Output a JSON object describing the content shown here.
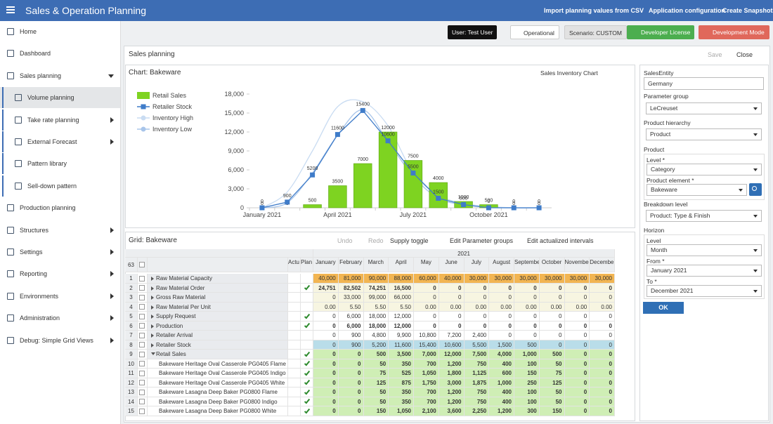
{
  "header": {
    "title": "Sales & Operation Planning",
    "actions": [
      "Import planning values from CSV",
      "Application configuration",
      "Create Snapshot"
    ]
  },
  "sidebar": {
    "items": [
      "Home",
      "Dashboard",
      "Sales planning",
      "Volume planning",
      "Take rate planning",
      "External Forecast",
      "Pattern library",
      "Sell-down pattern",
      "Production planning",
      "Structures",
      "Settings",
      "Reporting",
      "Environments",
      "Administration",
      "Debug: Simple Grid Views"
    ]
  },
  "toolbar": {
    "user": "User: Test User",
    "mode": "Operational",
    "scenario": "Scenario: CUSTOM",
    "license": "Developer License",
    "dev_mode": "Development Mode"
  },
  "panel": {
    "title": "Sales planning",
    "save": "Save",
    "close": "Close"
  },
  "chart_panel": {
    "title": "Chart: Bakeware",
    "selector": "Sales Inventory Chart"
  },
  "chart_data": {
    "type": "bar",
    "categories": [
      "January 2021",
      null,
      null,
      "April 2021",
      null,
      null,
      "July 2021",
      null,
      null,
      "October 2021",
      null,
      null
    ],
    "series": [
      {
        "name": "Retail Sales",
        "type": "bar",
        "color": "#7ed321",
        "values": [
          0,
          0,
          500,
          3500,
          7000,
          12000,
          7500,
          4000,
          1000,
          500,
          0,
          0
        ]
      },
      {
        "name": "Retailer Stock",
        "type": "line",
        "color": "#3f7cc9",
        "values": [
          0,
          900,
          5200,
          11600,
          15400,
          10600,
          5500,
          1500,
          500,
          0,
          0,
          0
        ]
      },
      {
        "name": "Inventory High",
        "type": "smooth",
        "color": "#c9dcf2",
        "values": [
          0,
          2500,
          9000,
          16000,
          16800,
          13000,
          5500,
          2000,
          700,
          200,
          0,
          0
        ]
      },
      {
        "name": "Inventory Low",
        "type": "smooth",
        "color": "#a8c5ea",
        "values": [
          0,
          800,
          5500,
          11500,
          15500,
          10500,
          5000,
          1500,
          500,
          100,
          0,
          0
        ]
      }
    ],
    "ylim": [
      0,
      18000
    ],
    "yticks": [
      0,
      {
        "value": 3000,
        "label": "3,000"
      },
      {
        "value": 6000,
        "label": "6,000"
      },
      {
        "value": 9000,
        "label": "9,000"
      },
      {
        "value": 12000,
        "label": "12,000"
      },
      {
        "value": 15000,
        "label": "15,000"
      },
      {
        "value": 18000,
        "label": "18,000"
      }
    ],
    "grid": false
  },
  "grid": {
    "title": "Grid: Bakeware",
    "tools": [
      "Undo",
      "Redo",
      "Supply toggle",
      "Edit Parameter groups",
      "Edit actualized intervals"
    ],
    "count": "63",
    "year": "2021",
    "columns": [
      "Actu",
      "Plan"
    ],
    "months": [
      "January",
      "February",
      "March",
      "April",
      "May",
      "June",
      "July",
      "August",
      "September",
      "October",
      "November",
      "December"
    ],
    "rows": [
      {
        "number": "1",
        "label": "Raw Material Capacity",
        "planned": false,
        "color": "#f2b552",
        "bold": false,
        "cells": [
          "40,000",
          "81,000",
          "90,000",
          "88,000",
          "60,000",
          "40,000",
          "30,000",
          "30,000",
          "30,000",
          "30,000",
          "30,000",
          "30,000"
        ]
      },
      {
        "number": "2",
        "label": "Raw Material Order",
        "planned": true,
        "color": "#f7f5e1",
        "bold": true,
        "cells": [
          "24,751",
          "82,502",
          "74,251",
          "16,500",
          "0",
          "0",
          "0",
          "0",
          "0",
          "0",
          "0",
          "0"
        ]
      },
      {
        "number": "3",
        "label": "Gross Raw Material",
        "planned": false,
        "color": "#f7f5e1",
        "bold": false,
        "cells": [
          "0",
          "33,000",
          "99,000",
          "66,000",
          "0",
          "0",
          "0",
          "0",
          "0",
          "0",
          "0",
          "0"
        ]
      },
      {
        "number": "4",
        "label": "Raw Material Per Unit",
        "planned": false,
        "color": "#f7f5e1",
        "bold": false,
        "cells": [
          "0.00",
          "5.50",
          "5.50",
          "5.50",
          "0.00",
          "0.00",
          "0.00",
          "0.00",
          "0.00",
          "0.00",
          "0.00",
          "0.00"
        ]
      },
      {
        "number": "5",
        "label": "Supply Request",
        "planned": true,
        "color": "#ffffff",
        "bold": false,
        "cells": [
          "0",
          "6,000",
          "18,000",
          "12,000",
          "0",
          "0",
          "0",
          "0",
          "0",
          "0",
          "0",
          "0"
        ]
      },
      {
        "number": "6",
        "label": "Production",
        "planned": true,
        "color": "#ffffff",
        "bold": true,
        "cells": [
          "0",
          "6,000",
          "18,000",
          "12,000",
          "0",
          "0",
          "0",
          "0",
          "0",
          "0",
          "0",
          "0"
        ]
      },
      {
        "number": "7",
        "label": "Retailer Arrival",
        "planned": false,
        "color": "#ffffff",
        "bold": false,
        "cells": [
          "0",
          "900",
          "4,800",
          "9,900",
          "10,800",
          "7,200",
          "2,400",
          "0",
          "0",
          "0",
          "0",
          "0"
        ]
      },
      {
        "number": "8",
        "label": "Retailer Stock",
        "planned": false,
        "color": "#b9dde9",
        "bold": false,
        "cells": [
          "0",
          "900",
          "5,200",
          "11,600",
          "15,400",
          "10,600",
          "5,500",
          "1,500",
          "500",
          "0",
          "0",
          "0"
        ]
      },
      {
        "number": "9",
        "label": "Retail Sales",
        "planned": true,
        "color": "#cfeeb5",
        "bold": true,
        "cells": [
          "0",
          "0",
          "500",
          "3,500",
          "7,000",
          "12,000",
          "7,500",
          "4,000",
          "1,000",
          "500",
          "0",
          "0"
        ]
      },
      {
        "number": "10",
        "label": "Bakeware Heritage Oval Casserole PG0405 Flame",
        "planned": true,
        "color": "#cfeeb5",
        "bold": true,
        "cells": [
          "0",
          "0",
          "50",
          "350",
          "700",
          "1,200",
          "750",
          "400",
          "100",
          "50",
          "0",
          "0"
        ]
      },
      {
        "number": "11",
        "label": "Bakeware Heritage Oval Casserole PG0405 Indigo",
        "planned": true,
        "color": "#cfeeb5",
        "bold": true,
        "cells": [
          "0",
          "0",
          "75",
          "525",
          "1,050",
          "1,800",
          "1,125",
          "600",
          "150",
          "75",
          "0",
          "0"
        ]
      },
      {
        "number": "12",
        "label": "Bakeware Heritage Oval Casserole PG0405 White",
        "planned": true,
        "color": "#cfeeb5",
        "bold": true,
        "cells": [
          "0",
          "0",
          "125",
          "875",
          "1,750",
          "3,000",
          "1,875",
          "1,000",
          "250",
          "125",
          "0",
          "0"
        ]
      },
      {
        "number": "13",
        "label": "Bakeware Lasagna Deep Baker PG0800 Flame",
        "planned": true,
        "color": "#cfeeb5",
        "bold": true,
        "cells": [
          "0",
          "0",
          "50",
          "350",
          "700",
          "1,200",
          "750",
          "400",
          "100",
          "50",
          "0",
          "0"
        ]
      },
      {
        "number": "14",
        "label": "Bakeware Lasagna Deep Baker PG0800 Indigo",
        "planned": true,
        "color": "#cfeeb5",
        "bold": true,
        "cells": [
          "0",
          "0",
          "50",
          "350",
          "700",
          "1,200",
          "750",
          "400",
          "100",
          "50",
          "0",
          "0"
        ]
      },
      {
        "number": "15",
        "label": "Bakeware Lasagna Deep Baker PG0800 White",
        "planned": true,
        "color": "#cfeeb5",
        "bold": true,
        "cells": [
          "0",
          "0",
          "150",
          "1,050",
          "2,100",
          "3,600",
          "2,250",
          "1,200",
          "300",
          "150",
          "0",
          "0"
        ]
      }
    ]
  },
  "filters": {
    "sales_entity": {
      "label": "SalesEntity",
      "value": "Germany"
    },
    "parameter_group": {
      "label": "Parameter group",
      "value": "LeCreuset"
    },
    "product_hierarchy": {
      "label": "Product hierarchy",
      "value": "Product"
    },
    "product": {
      "label": "Product",
      "level": {
        "label": "Level *",
        "value": "Category"
      },
      "element": {
        "label": "Product element *",
        "value": "Bakeware"
      }
    },
    "breakdown": {
      "label": "Breakdown level",
      "value": "Product: Type & Finish"
    },
    "horizon": {
      "label": "Horizon",
      "level": {
        "label": "Level",
        "value": "Month"
      },
      "from": {
        "label": "From *",
        "value": "January 2021"
      },
      "to": {
        "label": "To *",
        "value": "December 2021"
      }
    },
    "ok": "OK"
  }
}
